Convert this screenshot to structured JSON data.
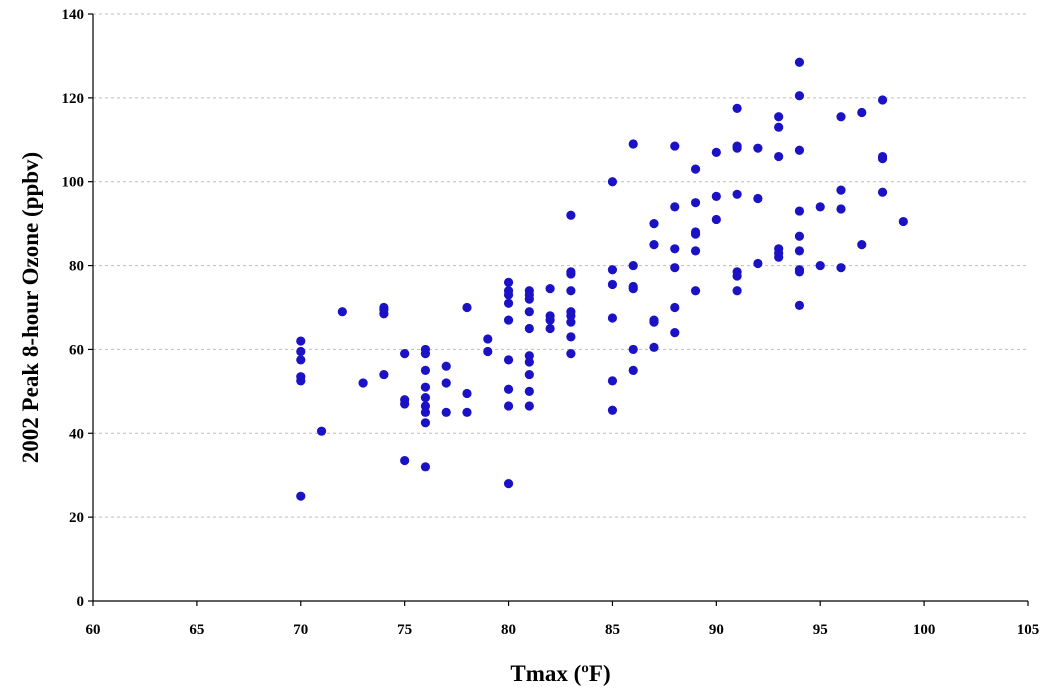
{
  "chart_data": {
    "type": "scatter",
    "xlabel": "Tmax (ºF)",
    "ylabel": "2002 Peak 8-hour Ozone (ppbv)",
    "xlim": [
      60,
      105
    ],
    "ylim": [
      0,
      140
    ],
    "xticks": [
      60,
      65,
      70,
      75,
      80,
      85,
      90,
      95,
      100,
      105
    ],
    "yticks": [
      0,
      20,
      40,
      60,
      80,
      100,
      120,
      140
    ],
    "grid": "horizontal dashed",
    "colors": {
      "points": "#1a12c4",
      "grid": "#bdbdbd"
    },
    "series": [
      {
        "marker": "circle",
        "points": [
          [
            70,
            62
          ],
          [
            70,
            59.5
          ],
          [
            70,
            57.5
          ],
          [
            70,
            53.5
          ],
          [
            70,
            52.5
          ],
          [
            70,
            25
          ],
          [
            71,
            40.5
          ],
          [
            72,
            69
          ],
          [
            73,
            52
          ],
          [
            74,
            70
          ],
          [
            74,
            69.5
          ],
          [
            74,
            68.5
          ],
          [
            74,
            54
          ],
          [
            75,
            59
          ],
          [
            75,
            48
          ],
          [
            75,
            47
          ],
          [
            75,
            33.5
          ],
          [
            76,
            60
          ],
          [
            76,
            59
          ],
          [
            76,
            55
          ],
          [
            76,
            51
          ],
          [
            76,
            48.5
          ],
          [
            76,
            46.5
          ],
          [
            76,
            45
          ],
          [
            76,
            42.5
          ],
          [
            76,
            32
          ],
          [
            77,
            56
          ],
          [
            77,
            52
          ],
          [
            77,
            45
          ],
          [
            78,
            70
          ],
          [
            78,
            49.5
          ],
          [
            78,
            45
          ],
          [
            79,
            62.5
          ],
          [
            79,
            59.5
          ],
          [
            80,
            76
          ],
          [
            80,
            74
          ],
          [
            80,
            73
          ],
          [
            80,
            71
          ],
          [
            80,
            67
          ],
          [
            80,
            57.5
          ],
          [
            80,
            50.5
          ],
          [
            80,
            46.5
          ],
          [
            80,
            28
          ],
          [
            81,
            74
          ],
          [
            81,
            73
          ],
          [
            81,
            72
          ],
          [
            81,
            69
          ],
          [
            81,
            65
          ],
          [
            81,
            58.5
          ],
          [
            81,
            57
          ],
          [
            81,
            54
          ],
          [
            81,
            50
          ],
          [
            81,
            46.5
          ],
          [
            82,
            74.5
          ],
          [
            82,
            68
          ],
          [
            82,
            67
          ],
          [
            82,
            65
          ],
          [
            83,
            92
          ],
          [
            83,
            78.5
          ],
          [
            83,
            78
          ],
          [
            83,
            74
          ],
          [
            83,
            69
          ],
          [
            83,
            68
          ],
          [
            83,
            66.5
          ],
          [
            83,
            63
          ],
          [
            83,
            59
          ],
          [
            85,
            100
          ],
          [
            85,
            79
          ],
          [
            85,
            75.5
          ],
          [
            85,
            67.5
          ],
          [
            85,
            52.5
          ],
          [
            85,
            45.5
          ],
          [
            86,
            109
          ],
          [
            86,
            80
          ],
          [
            86,
            75
          ],
          [
            86,
            74.5
          ],
          [
            86,
            60
          ],
          [
            86,
            55
          ],
          [
            87,
            90
          ],
          [
            87,
            85
          ],
          [
            87,
            67
          ],
          [
            87,
            66.5
          ],
          [
            87,
            60.5
          ],
          [
            88,
            108.5
          ],
          [
            88,
            94
          ],
          [
            88,
            84
          ],
          [
            88,
            79.5
          ],
          [
            88,
            70
          ],
          [
            88,
            64
          ],
          [
            89,
            103
          ],
          [
            89,
            95
          ],
          [
            89,
            88
          ],
          [
            89,
            87.5
          ],
          [
            89,
            83.5
          ],
          [
            89,
            74
          ],
          [
            90,
            107
          ],
          [
            90,
            96.5
          ],
          [
            90,
            91
          ],
          [
            91,
            117.5
          ],
          [
            91,
            108.5
          ],
          [
            91,
            108
          ],
          [
            91,
            97
          ],
          [
            91,
            78.5
          ],
          [
            91,
            77.5
          ],
          [
            91,
            74
          ],
          [
            92,
            108
          ],
          [
            92,
            96
          ],
          [
            92,
            80.5
          ],
          [
            93,
            115.5
          ],
          [
            93,
            113
          ],
          [
            93,
            106
          ],
          [
            93,
            84
          ],
          [
            93,
            83
          ],
          [
            93,
            82
          ],
          [
            94,
            128.5
          ],
          [
            94,
            120.5
          ],
          [
            94,
            107.5
          ],
          [
            94,
            93
          ],
          [
            94,
            87
          ],
          [
            94,
            83.5
          ],
          [
            94,
            79
          ],
          [
            94,
            78.5
          ],
          [
            94,
            70.5
          ],
          [
            95,
            94
          ],
          [
            95,
            80
          ],
          [
            96,
            115.5
          ],
          [
            96,
            98
          ],
          [
            96,
            93.5
          ],
          [
            96,
            79.5
          ],
          [
            97,
            116.5
          ],
          [
            97,
            85
          ],
          [
            98,
            119.5
          ],
          [
            98,
            106
          ],
          [
            98,
            105.5
          ],
          [
            98,
            97.5
          ],
          [
            99,
            90.5
          ]
        ]
      }
    ]
  }
}
